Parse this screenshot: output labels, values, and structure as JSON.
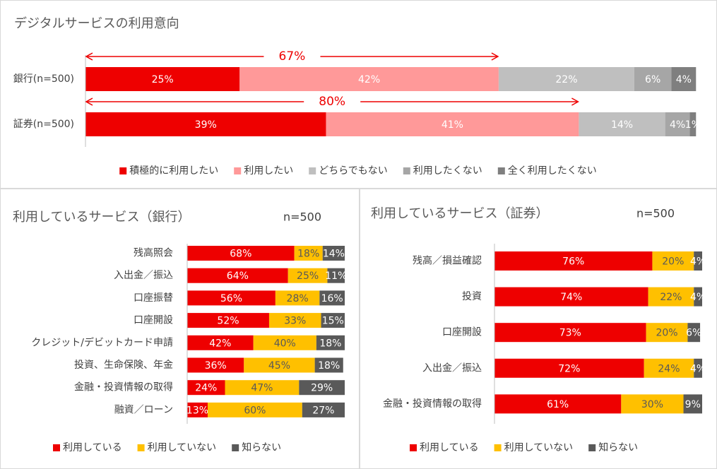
{
  "chart_data": [
    {
      "type": "bar",
      "orientation": "horizontal",
      "stacked": true,
      "title": "デジタルサービスの利用意向",
      "categories": [
        "銀行(n=500)",
        "証券(n=500)"
      ],
      "xlim": [
        0,
        100
      ],
      "annotations": [
        "67%",
        "80%"
      ],
      "legend": "bottom",
      "series": [
        {
          "name": "積極的に利用したい",
          "color": "#ee0000",
          "values": [
            25,
            39
          ],
          "value_labels": [
            "25%",
            "39%"
          ]
        },
        {
          "name": "利用したい",
          "color": "#ff9999",
          "values": [
            42,
            41
          ],
          "value_labels": [
            "42%",
            "41%"
          ]
        },
        {
          "name": "どちらでもない",
          "color": "#bfbfbf",
          "values": [
            22,
            14
          ],
          "value_labels": [
            "22%",
            "14%"
          ]
        },
        {
          "name": "利用したくない",
          "color": "#a6a6a6",
          "values": [
            6,
            4
          ],
          "value_labels": [
            "6%",
            "4%"
          ]
        },
        {
          "name": "全く利用したくない",
          "color": "#7f7f7f",
          "values": [
            4,
            1
          ],
          "value_labels": [
            "4%",
            "1%"
          ]
        }
      ]
    },
    {
      "type": "bar",
      "orientation": "horizontal",
      "stacked": true,
      "title": "利用しているサービス（銀行）",
      "subtitle": "n=500",
      "categories": [
        "残高照会",
        "入出金／振込",
        "口座振替",
        "口座開設",
        "クレジット/デビットカード申請",
        "投資、生命保険、年金",
        "金融・投資情報の取得",
        "融資／ローン"
      ],
      "xlim": [
        0,
        100
      ],
      "legend": "bottom",
      "series": [
        {
          "name": "利用している",
          "color": "#ee0000",
          "values": [
            68,
            64,
            56,
            52,
            42,
            36,
            24,
            13
          ],
          "value_labels": [
            "68%",
            "64%",
            "56%",
            "52%",
            "42%",
            "36%",
            "24%",
            "13%"
          ]
        },
        {
          "name": "利用していない",
          "color": "#ffc000",
          "values": [
            18,
            25,
            28,
            33,
            40,
            45,
            47,
            60
          ],
          "value_labels": [
            "18%",
            "25%",
            "28%",
            "33%",
            "40%",
            "45%",
            "47%",
            "60%"
          ]
        },
        {
          "name": "知らない",
          "color": "#595959",
          "values": [
            14,
            11,
            16,
            15,
            18,
            18,
            29,
            27
          ],
          "value_labels": [
            "14%",
            "11%",
            "16%",
            "15%",
            "18%",
            "18%",
            "29%",
            "27%"
          ]
        }
      ]
    },
    {
      "type": "bar",
      "orientation": "horizontal",
      "stacked": true,
      "title": "利用しているサービス（証券）",
      "subtitle": "n=500",
      "categories": [
        "残高／損益確認",
        "投資",
        "口座開設",
        "入出金／振込",
        "金融・投資情報の取得"
      ],
      "xlim": [
        0,
        100
      ],
      "legend": "bottom",
      "series": [
        {
          "name": "利用している",
          "color": "#ee0000",
          "values": [
            76,
            74,
            73,
            72,
            61
          ],
          "value_labels": [
            "76%",
            "74%",
            "73%",
            "72%",
            "61%"
          ]
        },
        {
          "name": "利用していない",
          "color": "#ffc000",
          "values": [
            20,
            22,
            20,
            24,
            30
          ],
          "value_labels": [
            "20%",
            "22%",
            "20%",
            "24%",
            "30%"
          ]
        },
        {
          "name": "知らない",
          "color": "#595959",
          "values": [
            4,
            4,
            6,
            4,
            9
          ],
          "value_labels": [
            "4%",
            "4%",
            "6%",
            "4%",
            "9%"
          ]
        }
      ]
    }
  ]
}
